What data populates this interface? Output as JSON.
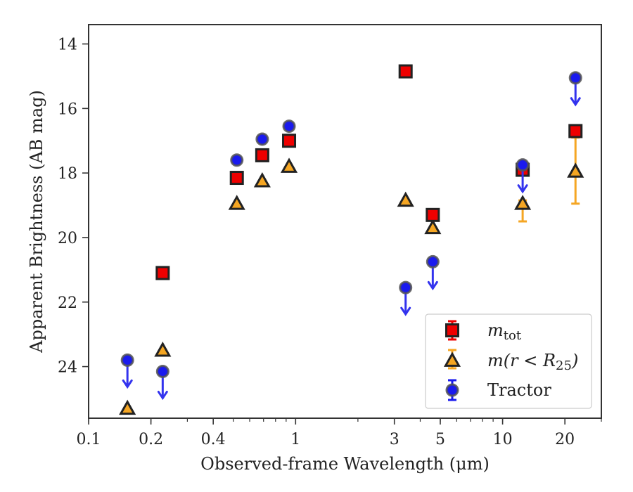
{
  "chart_data": {
    "type": "scatter",
    "title": "",
    "xlabel": "Observed-frame Wavelength (μm)",
    "ylabel": "Apparent Brightness (AB mag)",
    "xscale": "log",
    "xlim": [
      0.1,
      30
    ],
    "ylim": [
      25.6,
      13.4
    ],
    "y_inverted": true,
    "x_tick_labels": [
      "0.1",
      "0.2",
      "0.4",
      "1",
      "3",
      "5",
      "10",
      "20"
    ],
    "x_tick_values": [
      0.1,
      0.2,
      0.4,
      1,
      3,
      5,
      10,
      20
    ],
    "y_tick_labels": [
      "14",
      "16",
      "18",
      "20",
      "22",
      "24"
    ],
    "y_tick_values": [
      14,
      16,
      18,
      20,
      22,
      24
    ],
    "legend_position": "lower-right",
    "grid": false,
    "colors": {
      "m_tot": "#ee0000",
      "m_r25": "#f5a623",
      "tractor": "#1a1aee",
      "tractor_arrow": "#3333ee",
      "marker_edge": "#222222"
    },
    "series": [
      {
        "name": "m_tot",
        "legend_label_main": "m",
        "legend_label_sub": "tot",
        "marker": "square",
        "points": [
          {
            "x": 0.228,
            "y": 21.1
          },
          {
            "x": 0.52,
            "y": 18.15
          },
          {
            "x": 0.69,
            "y": 17.45
          },
          {
            "x": 0.93,
            "y": 17.0
          },
          {
            "x": 3.4,
            "y": 14.85
          },
          {
            "x": 4.6,
            "y": 19.3
          },
          {
            "x": 12.5,
            "y": 17.9
          },
          {
            "x": 22.5,
            "y": 16.7
          }
        ]
      },
      {
        "name": "m(r < R25)",
        "legend_label_main": "m(r < R",
        "legend_label_sub": "25",
        "legend_label_end": ")",
        "marker": "triangle",
        "points": [
          {
            "x": 0.154,
            "y": 25.3
          },
          {
            "x": 0.228,
            "y": 23.5
          },
          {
            "x": 0.52,
            "y": 18.95
          },
          {
            "x": 0.69,
            "y": 18.25
          },
          {
            "x": 0.93,
            "y": 17.8
          },
          {
            "x": 3.4,
            "y": 18.85
          },
          {
            "x": 4.6,
            "y": 19.7
          },
          {
            "x": 12.5,
            "y": 18.95,
            "yerr": [
              18.85,
              19.5
            ]
          },
          {
            "x": 22.5,
            "y": 17.95,
            "yerr": [
              16.9,
              18.95
            ]
          }
        ]
      },
      {
        "name": "Tractor",
        "legend_label_main": "Tractor",
        "marker": "circle",
        "points": [
          {
            "x": 0.154,
            "y": 23.8,
            "upper_limit": true
          },
          {
            "x": 0.228,
            "y": 24.15,
            "upper_limit": true
          },
          {
            "x": 0.52,
            "y": 17.6
          },
          {
            "x": 0.69,
            "y": 16.95
          },
          {
            "x": 0.93,
            "y": 16.55
          },
          {
            "x": 3.4,
            "y": 21.55,
            "upper_limit": true
          },
          {
            "x": 4.6,
            "y": 20.75,
            "upper_limit": true
          },
          {
            "x": 12.5,
            "y": 17.75,
            "upper_limit": true
          },
          {
            "x": 22.5,
            "y": 15.05,
            "upper_limit": true
          }
        ]
      }
    ]
  }
}
